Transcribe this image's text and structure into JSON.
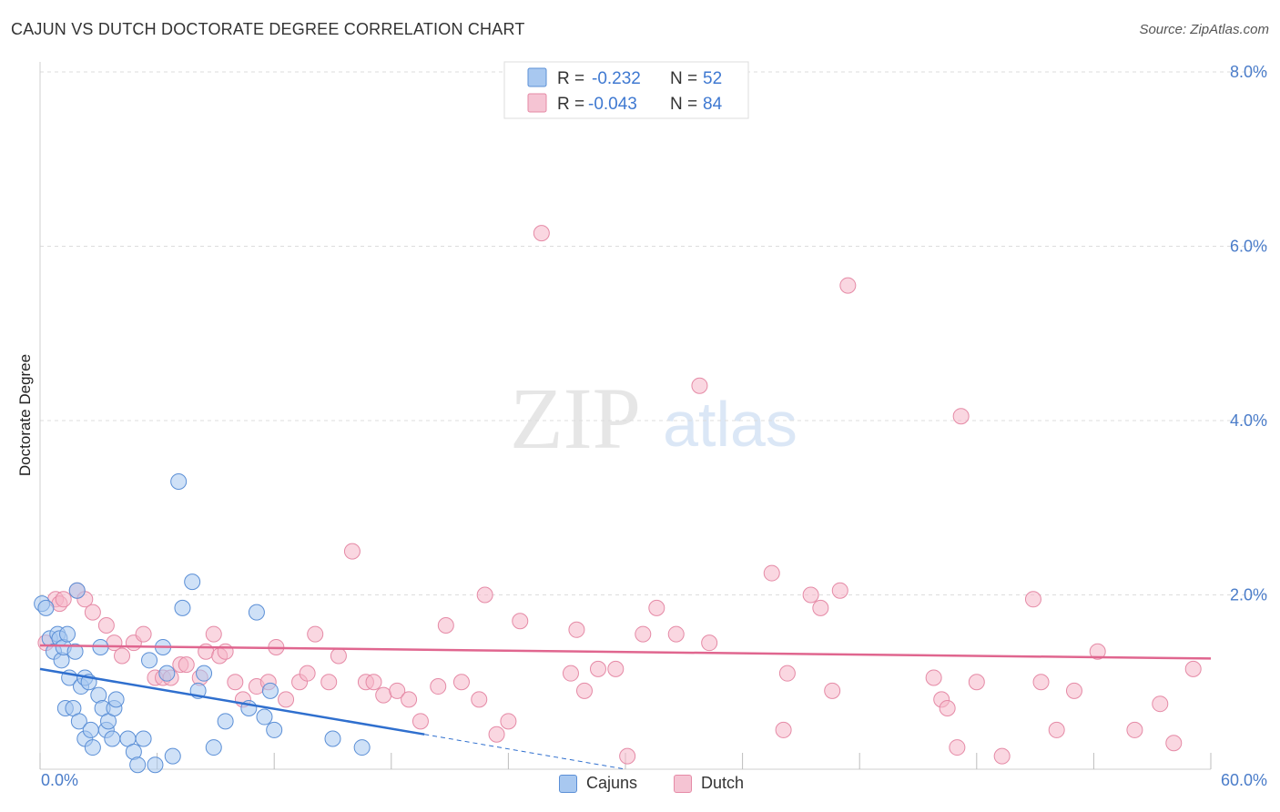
{
  "title": "CAJUN VS DUTCH DOCTORATE DEGREE CORRELATION CHART",
  "source": "Source: ZipAtlas.com",
  "watermark": {
    "zip": "ZIP",
    "atlas": "atlas"
  },
  "colors": {
    "cajun_fill": "#a8c8f0",
    "cajun_stroke": "#5b8fd6",
    "cajun_line": "#2f6fce",
    "dutch_fill": "#f5b6c9",
    "dutch_stroke": "#e58aa6",
    "dutch_line": "#e0668f",
    "axis_label": "#4a7cc9",
    "grid": "#dddddd"
  },
  "legend": {
    "rows": [
      {
        "r_label": "R =",
        "r_value": "-0.232",
        "n_label": "N =",
        "n_value": "52"
      },
      {
        "r_label": "R =",
        "r_value": "-0.043",
        "n_label": "N =",
        "n_value": "84"
      }
    ]
  },
  "bottom_legend": {
    "cajuns": "Cajuns",
    "dutch": "Dutch"
  },
  "chart_data": {
    "type": "scatter",
    "title": "CAJUN VS DUTCH DOCTORATE DEGREE CORRELATION CHART",
    "xlabel": "",
    "ylabel": "Doctorate Degree",
    "xlim": [
      0,
      60
    ],
    "ylim": [
      0,
      8.0
    ],
    "x_tick_labels": [
      "0.0%",
      "60.0%"
    ],
    "y_ticks": [
      2.0,
      4.0,
      6.0,
      8.0
    ],
    "y_tick_labels": [
      "2.0%",
      "4.0%",
      "6.0%",
      "8.0%"
    ],
    "grid": true,
    "series": [
      {
        "name": "Cajuns",
        "points": [
          [
            0.1,
            1.9
          ],
          [
            0.3,
            1.85
          ],
          [
            0.5,
            1.5
          ],
          [
            0.7,
            1.35
          ],
          [
            0.9,
            1.55
          ],
          [
            1.0,
            1.5
          ],
          [
            1.1,
            1.25
          ],
          [
            1.2,
            1.4
          ],
          [
            1.3,
            0.7
          ],
          [
            1.4,
            1.55
          ],
          [
            1.5,
            1.05
          ],
          [
            1.7,
            0.7
          ],
          [
            1.8,
            1.35
          ],
          [
            1.9,
            2.05
          ],
          [
            2.0,
            0.55
          ],
          [
            2.1,
            0.95
          ],
          [
            2.3,
            0.35
          ],
          [
            2.3,
            1.05
          ],
          [
            2.5,
            1.0
          ],
          [
            2.6,
            0.45
          ],
          [
            2.7,
            0.25
          ],
          [
            3.0,
            0.85
          ],
          [
            3.1,
            1.4
          ],
          [
            3.2,
            0.7
          ],
          [
            3.4,
            0.45
          ],
          [
            3.5,
            0.55
          ],
          [
            3.7,
            0.35
          ],
          [
            3.8,
            0.7
          ],
          [
            3.9,
            0.8
          ],
          [
            4.5,
            0.35
          ],
          [
            4.8,
            0.2
          ],
          [
            5.0,
            0.05
          ],
          [
            5.3,
            0.35
          ],
          [
            5.6,
            1.25
          ],
          [
            5.9,
            0.05
          ],
          [
            6.3,
            1.4
          ],
          [
            6.5,
            1.1
          ],
          [
            6.8,
            0.15
          ],
          [
            7.1,
            3.3
          ],
          [
            7.3,
            1.85
          ],
          [
            7.8,
            2.15
          ],
          [
            8.1,
            0.9
          ],
          [
            8.4,
            1.1
          ],
          [
            8.9,
            0.25
          ],
          [
            9.5,
            0.55
          ],
          [
            10.7,
            0.7
          ],
          [
            11.1,
            1.8
          ],
          [
            11.8,
            0.9
          ],
          [
            12.0,
            0.45
          ],
          [
            15.0,
            0.35
          ],
          [
            16.5,
            0.25
          ],
          [
            11.5,
            0.6
          ]
        ],
        "trend": {
          "x0": 0,
          "y0": 1.15,
          "x1": 19.7,
          "y1": 0.4,
          "dash_to_x": 30,
          "dash_to_y": 0.0
        }
      },
      {
        "name": "Dutch",
        "points": [
          [
            0.3,
            1.45
          ],
          [
            0.8,
            1.95
          ],
          [
            1.0,
            1.9
          ],
          [
            1.2,
            1.95
          ],
          [
            1.9,
            2.05
          ],
          [
            2.3,
            1.95
          ],
          [
            2.7,
            1.8
          ],
          [
            3.4,
            1.65
          ],
          [
            3.8,
            1.45
          ],
          [
            4.2,
            1.3
          ],
          [
            4.8,
            1.45
          ],
          [
            5.3,
            1.55
          ],
          [
            5.9,
            1.05
          ],
          [
            6.3,
            1.05
          ],
          [
            6.7,
            1.05
          ],
          [
            7.2,
            1.2
          ],
          [
            7.5,
            1.2
          ],
          [
            8.2,
            1.05
          ],
          [
            8.5,
            1.35
          ],
          [
            8.9,
            1.55
          ],
          [
            9.2,
            1.3
          ],
          [
            9.5,
            1.35
          ],
          [
            10.0,
            1.0
          ],
          [
            10.4,
            0.8
          ],
          [
            11.1,
            0.95
          ],
          [
            11.7,
            1.0
          ],
          [
            12.1,
            1.4
          ],
          [
            12.6,
            0.8
          ],
          [
            13.3,
            1.0
          ],
          [
            13.7,
            1.1
          ],
          [
            14.1,
            1.55
          ],
          [
            14.8,
            1.0
          ],
          [
            15.3,
            1.3
          ],
          [
            16.0,
            2.5
          ],
          [
            16.7,
            1.0
          ],
          [
            17.1,
            1.0
          ],
          [
            17.6,
            0.85
          ],
          [
            18.3,
            0.9
          ],
          [
            18.9,
            0.8
          ],
          [
            19.5,
            0.55
          ],
          [
            20.4,
            0.95
          ],
          [
            20.8,
            1.65
          ],
          [
            21.6,
            1.0
          ],
          [
            22.5,
            0.8
          ],
          [
            22.8,
            2.0
          ],
          [
            23.4,
            0.4
          ],
          [
            24.0,
            0.55
          ],
          [
            24.6,
            1.7
          ],
          [
            25.7,
            6.15
          ],
          [
            27.2,
            1.1
          ],
          [
            27.5,
            1.6
          ],
          [
            27.9,
            0.9
          ],
          [
            28.6,
            1.15
          ],
          [
            29.5,
            1.15
          ],
          [
            30.1,
            0.15
          ],
          [
            30.9,
            1.55
          ],
          [
            31.6,
            1.85
          ],
          [
            32.6,
            1.55
          ],
          [
            33.8,
            4.4
          ],
          [
            34.3,
            1.45
          ],
          [
            37.5,
            2.25
          ],
          [
            38.1,
            0.45
          ],
          [
            38.3,
            1.1
          ],
          [
            39.5,
            2.0
          ],
          [
            40.0,
            1.85
          ],
          [
            40.6,
            0.9
          ],
          [
            41.0,
            2.05
          ],
          [
            41.4,
            5.55
          ],
          [
            45.8,
            1.05
          ],
          [
            46.2,
            0.8
          ],
          [
            46.5,
            0.7
          ],
          [
            47.0,
            0.25
          ],
          [
            47.2,
            4.05
          ],
          [
            48.0,
            1.0
          ],
          [
            49.3,
            0.15
          ],
          [
            50.9,
            1.95
          ],
          [
            51.3,
            1.0
          ],
          [
            52.1,
            0.45
          ],
          [
            53.0,
            0.9
          ],
          [
            54.2,
            1.35
          ],
          [
            56.1,
            0.45
          ],
          [
            57.4,
            0.75
          ],
          [
            58.1,
            0.3
          ],
          [
            59.1,
            1.15
          ]
        ],
        "trend": {
          "x0": 0,
          "y0": 1.42,
          "x1": 60,
          "y1": 1.27
        }
      }
    ]
  }
}
